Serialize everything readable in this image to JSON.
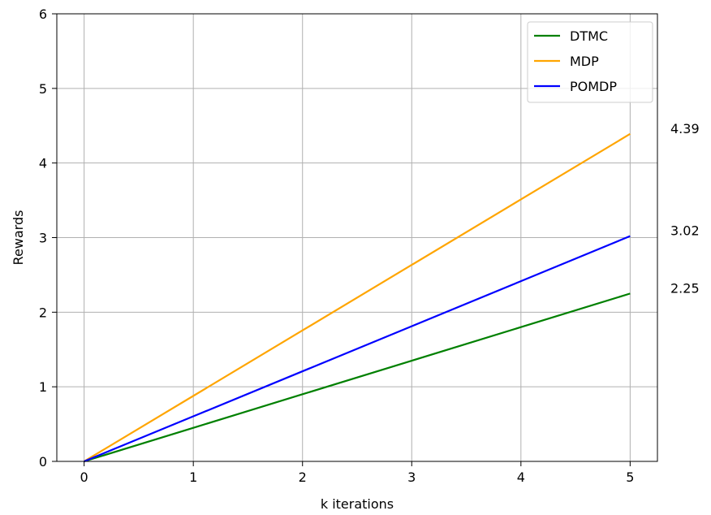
{
  "chart_data": {
    "type": "line",
    "title": "",
    "xlabel": "k iterations",
    "ylabel": "Rewards",
    "xlim": [
      -0.25,
      5.25
    ],
    "ylim": [
      0,
      6
    ],
    "x": [
      0,
      1,
      2,
      3,
      4,
      5
    ],
    "xticks": [
      "0",
      "1",
      "2",
      "3",
      "4",
      "5"
    ],
    "yticks": [
      "0",
      "1",
      "2",
      "3",
      "4",
      "5",
      "6"
    ],
    "grid": true,
    "legend_position": "top-right",
    "series": [
      {
        "name": "DTMC",
        "color": "#008000",
        "values": [
          0,
          0.45,
          0.9,
          1.35,
          1.8,
          2.25
        ]
      },
      {
        "name": "MDP",
        "color": "#ffa500",
        "values": [
          0,
          0.878,
          1.756,
          2.634,
          3.512,
          4.39
        ]
      },
      {
        "name": "POMDP",
        "color": "#0000ff",
        "values": [
          0,
          0.604,
          1.208,
          1.812,
          2.416,
          3.02
        ]
      }
    ],
    "end_labels": [
      {
        "series": "MDP",
        "text": "4.39",
        "value": 4.39
      },
      {
        "series": "POMDP",
        "text": "3.02",
        "value": 3.02
      },
      {
        "series": "DTMC",
        "text": "2.25",
        "value": 2.25
      }
    ]
  }
}
